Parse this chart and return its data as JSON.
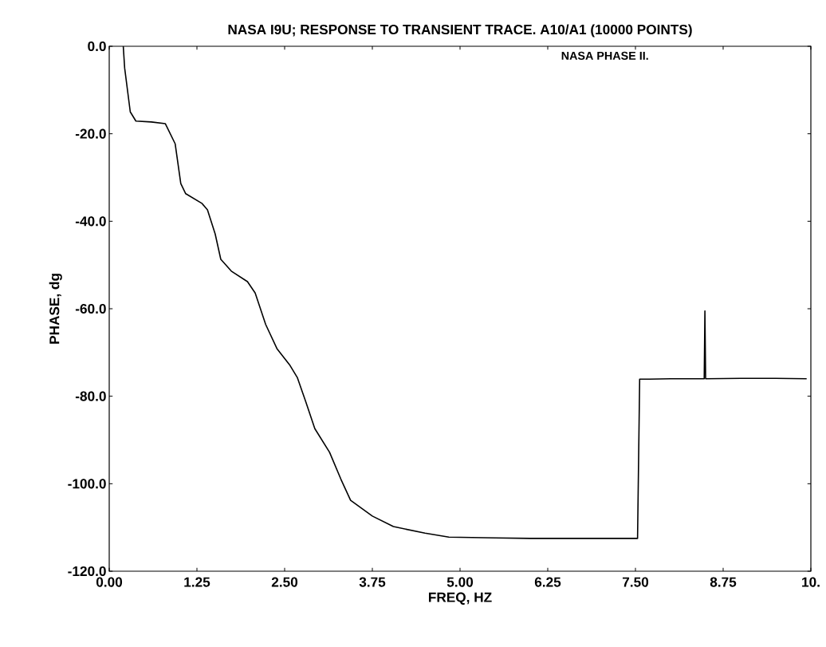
{
  "chart_data": {
    "type": "line",
    "title": "NASA I9U; RESPONSE TO TRANSIENT TRACE.  A10/A1 (10000 POINTS)",
    "xlabel": "FREQ, HZ",
    "ylabel": "PHASE, dg",
    "annotations": [
      "NASA PHASE  II."
    ],
    "xlim": [
      0,
      10
    ],
    "ylim": [
      -120,
      0
    ],
    "xticks": [
      {
        "value": 0,
        "label": "0.00"
      },
      1.25,
      {
        "value": 2.5,
        "label": "2.50"
      },
      3.75,
      {
        "value": 5,
        "label": "5.00"
      },
      6.25,
      {
        "value": 7.5,
        "label": "7.50"
      },
      8.75,
      {
        "value": 10,
        "label": "10."
      }
    ],
    "yticks": [
      {
        "value": 0,
        "label": "0.0"
      },
      {
        "value": -20,
        "label": "-20.0"
      },
      {
        "value": -40,
        "label": "-40.0"
      },
      {
        "value": -60,
        "label": "-60.0"
      },
      {
        "value": -80,
        "label": "-80.0"
      },
      {
        "value": -100,
        "label": "-100.0"
      },
      {
        "value": -120,
        "label": "-120.0"
      }
    ],
    "grid": false,
    "marker": "none",
    "line_style": "solid",
    "series": [
      {
        "color": "#000000",
        "x": [
          0.2,
          0.22,
          0.3,
          0.38,
          0.6,
          0.8,
          0.94,
          1.02,
          1.09,
          1.32,
          1.4,
          1.51,
          1.59,
          1.74,
          1.97,
          2.08,
          2.23,
          2.39,
          2.57,
          2.68,
          2.8,
          2.93,
          3.14,
          3.3,
          3.44,
          3.75,
          4.05,
          4.5,
          4.84,
          5.5,
          6.0,
          6.5,
          7.0,
          7.53,
          7.56,
          7.7,
          8.0,
          8.48,
          8.49,
          8.5,
          9.0,
          9.5,
          9.94
        ],
        "values": [
          0,
          -5,
          -15,
          -17.1,
          -17.3,
          -17.7,
          -22.3,
          -31.4,
          -33.7,
          -35.9,
          -37.4,
          -42.9,
          -48.7,
          -51.4,
          -53.8,
          -56.4,
          -63.6,
          -69.1,
          -72.8,
          -75.7,
          -81.2,
          -87.4,
          -92.8,
          -98.9,
          -103.8,
          -107.4,
          -109.8,
          -111.3,
          -112.2,
          -112.4,
          -112.5,
          -112.5,
          -112.5,
          -112.5,
          -76.1,
          -76.1,
          -76.0,
          -76.0,
          -60.5,
          -76.0,
          -75.9,
          -75.9,
          -76.0
        ]
      }
    ]
  }
}
